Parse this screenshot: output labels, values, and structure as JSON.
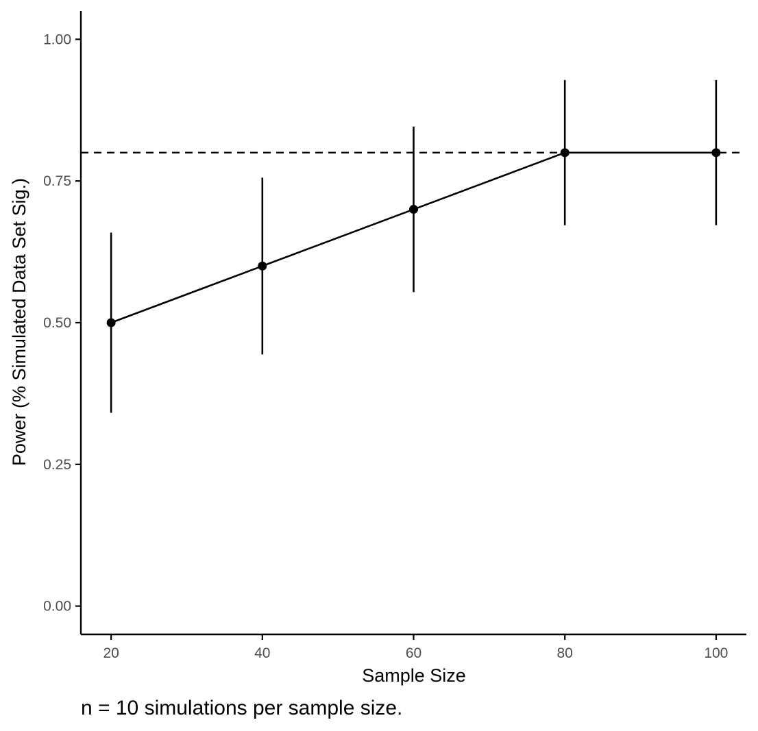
{
  "chart_data": {
    "type": "line",
    "title": "",
    "xlabel": "Sample Size",
    "ylabel": "Power (% Simulated Data Set Sig.)",
    "caption": "n = 10 simulations per sample size.",
    "x": [
      20,
      40,
      60,
      80,
      100
    ],
    "series": [
      {
        "values": [
          0.5,
          0.6,
          0.7,
          0.8,
          0.8
        ],
        "lower": [
          0.341,
          0.444,
          0.554,
          0.672,
          0.672
        ],
        "upper": [
          0.659,
          0.756,
          0.846,
          0.928,
          0.928
        ]
      }
    ],
    "reference_line": {
      "y": 0.8,
      "style": "dashed"
    },
    "xticks": [
      "20",
      "40",
      "60",
      "80",
      "100"
    ],
    "yticks": [
      "0.00",
      "0.25",
      "0.50",
      "0.75",
      "1.00"
    ],
    "xlim": [
      16,
      104
    ],
    "ylim": [
      -0.05,
      1.05
    ],
    "grid": false,
    "legend": "none",
    "colors": {
      "line": "#000000",
      "axis": "#000000",
      "tick_text": "#4d4d4d"
    }
  }
}
